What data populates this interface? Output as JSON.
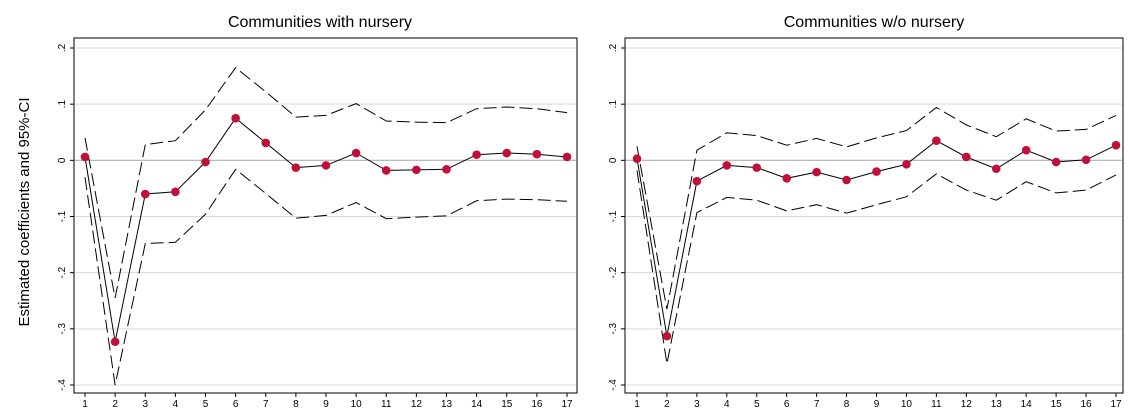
{
  "ylabel": "Estimated coefficients and 95%-CI",
  "chart_data": [
    {
      "type": "line",
      "title": "Communities with nursery",
      "x": [
        1,
        2,
        3,
        4,
        5,
        6,
        7,
        8,
        9,
        10,
        11,
        12,
        13,
        14,
        15,
        16,
        17
      ],
      "xticks": [
        "1",
        "2",
        "3",
        "4",
        "5",
        "6",
        "7",
        "8",
        "9",
        "10",
        "11",
        "12",
        "13",
        "14",
        "15",
        "16",
        "17"
      ],
      "ylim": [
        -0.4,
        0.2
      ],
      "yticks": [
        ".2",
        ".1",
        "0",
        "-.1",
        "-.2",
        "-.3",
        "-.4"
      ],
      "yticks_values": [
        0.2,
        0.1,
        0,
        -0.1,
        -0.2,
        -0.3,
        -0.4
      ],
      "grid": true,
      "reference_line": 0,
      "series": [
        {
          "role": "estimate",
          "values": [
            0.006,
            -0.323,
            -0.06,
            -0.056,
            -0.003,
            0.075,
            0.031,
            -0.013,
            -0.009,
            0.013,
            -0.018,
            -0.017,
            -0.016,
            0.01,
            0.013,
            0.011,
            0.006
          ]
        },
        {
          "role": "upper_ci",
          "values": [
            0.04,
            -0.245,
            0.028,
            0.035,
            0.09,
            0.165,
            0.122,
            0.077,
            0.08,
            0.101,
            0.07,
            0.068,
            0.067,
            0.092,
            0.095,
            0.092,
            0.085
          ]
        },
        {
          "role": "lower_ci",
          "values": [
            -0.03,
            -0.4,
            -0.148,
            -0.146,
            -0.096,
            -0.016,
            -0.059,
            -0.103,
            -0.098,
            -0.075,
            -0.104,
            -0.101,
            -0.099,
            -0.072,
            -0.069,
            -0.07,
            -0.073
          ]
        }
      ],
      "colors": {
        "estimate_marker": "#c0103a",
        "line": "#000000",
        "grid": "#d9d9d9",
        "reference": "#b0b0b0"
      }
    },
    {
      "type": "line",
      "title": "Communities w/o nursery",
      "x": [
        1,
        2,
        3,
        4,
        5,
        6,
        7,
        8,
        9,
        10,
        11,
        12,
        13,
        14,
        15,
        16,
        17
      ],
      "xticks": [
        "1",
        "2",
        "3",
        "4",
        "5",
        "6",
        "7",
        "8",
        "9",
        "10",
        "11",
        "12",
        "13",
        "14",
        "15",
        "16",
        "17"
      ],
      "ylim": [
        -0.4,
        0.2
      ],
      "yticks": [
        ".2",
        ".1",
        "0",
        "-.1",
        "-.2",
        "-.3",
        "-.4"
      ],
      "yticks_values": [
        0.2,
        0.1,
        0,
        -0.1,
        -0.2,
        -0.3,
        -0.4
      ],
      "grid": true,
      "reference_line": 0,
      "series": [
        {
          "role": "estimate",
          "values": [
            0.003,
            -0.313,
            -0.037,
            -0.009,
            -0.013,
            -0.032,
            -0.021,
            -0.035,
            -0.02,
            -0.007,
            0.035,
            0.006,
            -0.015,
            0.018,
            -0.003,
            0.001,
            0.027
          ]
        },
        {
          "role": "upper_ci",
          "values": [
            0.025,
            -0.265,
            0.018,
            0.049,
            0.044,
            0.027,
            0.039,
            0.024,
            0.04,
            0.053,
            0.094,
            0.063,
            0.042,
            0.074,
            0.052,
            0.055,
            0.08
          ]
        },
        {
          "role": "lower_ci",
          "values": [
            -0.018,
            -0.362,
            -0.093,
            -0.066,
            -0.071,
            -0.09,
            -0.079,
            -0.094,
            -0.079,
            -0.065,
            -0.024,
            -0.053,
            -0.071,
            -0.038,
            -0.058,
            -0.053,
            -0.026
          ]
        }
      ],
      "colors": {
        "estimate_marker": "#c0103a",
        "line": "#000000",
        "grid": "#d9d9d9",
        "reference": "#b0b0b0"
      }
    }
  ]
}
